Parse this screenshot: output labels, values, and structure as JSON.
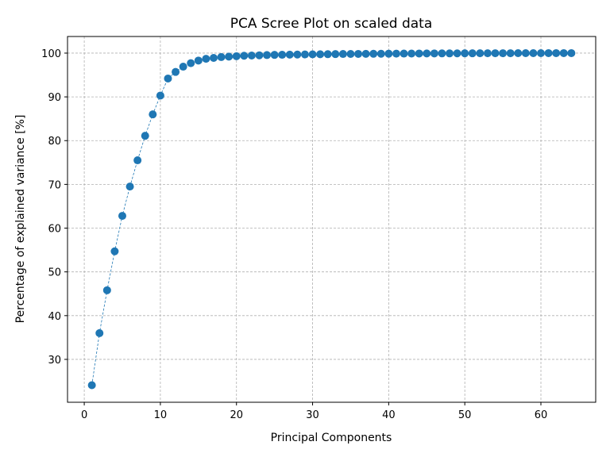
{
  "chart_data": {
    "type": "line",
    "title": "PCA Scree Plot on scaled data",
    "xlabel": "Principal Components",
    "ylabel": "Percentage of explained variance [%]",
    "xlim": [
      -2.2,
      67.2
    ],
    "ylim": [
      20.2,
      103.8
    ],
    "xticks": [
      0,
      10,
      20,
      30,
      40,
      50,
      60
    ],
    "yticks": [
      30,
      40,
      50,
      60,
      70,
      80,
      90,
      100
    ],
    "grid": true,
    "marker": "circle",
    "line_style": "dashed",
    "series": [
      {
        "x": [
          1,
          2,
          3,
          4,
          5,
          6,
          7,
          8,
          9,
          10,
          11,
          12,
          13,
          14,
          15,
          16,
          17,
          18,
          19,
          20,
          21,
          22,
          23,
          24,
          25,
          26,
          27,
          28,
          29,
          30,
          31,
          32,
          33,
          34,
          35,
          36,
          37,
          38,
          39,
          40,
          41,
          42,
          43,
          44,
          45,
          46,
          47,
          48,
          49,
          50,
          51,
          52,
          53,
          54,
          55,
          56,
          57,
          58,
          59,
          60,
          61,
          62,
          63,
          64
        ],
        "values": [
          24.1,
          36.0,
          45.8,
          54.7,
          62.8,
          69.5,
          75.5,
          81.1,
          86.0,
          90.3,
          94.2,
          95.7,
          96.9,
          97.7,
          98.3,
          98.7,
          98.9,
          99.1,
          99.2,
          99.3,
          99.4,
          99.45,
          99.5,
          99.55,
          99.6,
          99.62,
          99.65,
          99.67,
          99.7,
          99.72,
          99.74,
          99.76,
          99.78,
          99.8,
          99.81,
          99.82,
          99.83,
          99.85,
          99.86,
          99.87,
          99.88,
          99.89,
          99.9,
          99.91,
          99.92,
          99.93,
          99.94,
          99.94,
          99.95,
          99.96,
          99.96,
          99.97,
          99.97,
          99.98,
          99.98,
          99.98,
          99.99,
          99.99,
          99.99,
          99.99,
          100,
          100,
          100,
          100
        ]
      }
    ]
  },
  "colors": {
    "series": "#1f77b4",
    "grid": "#b0b0b0",
    "axes": "#000000"
  }
}
